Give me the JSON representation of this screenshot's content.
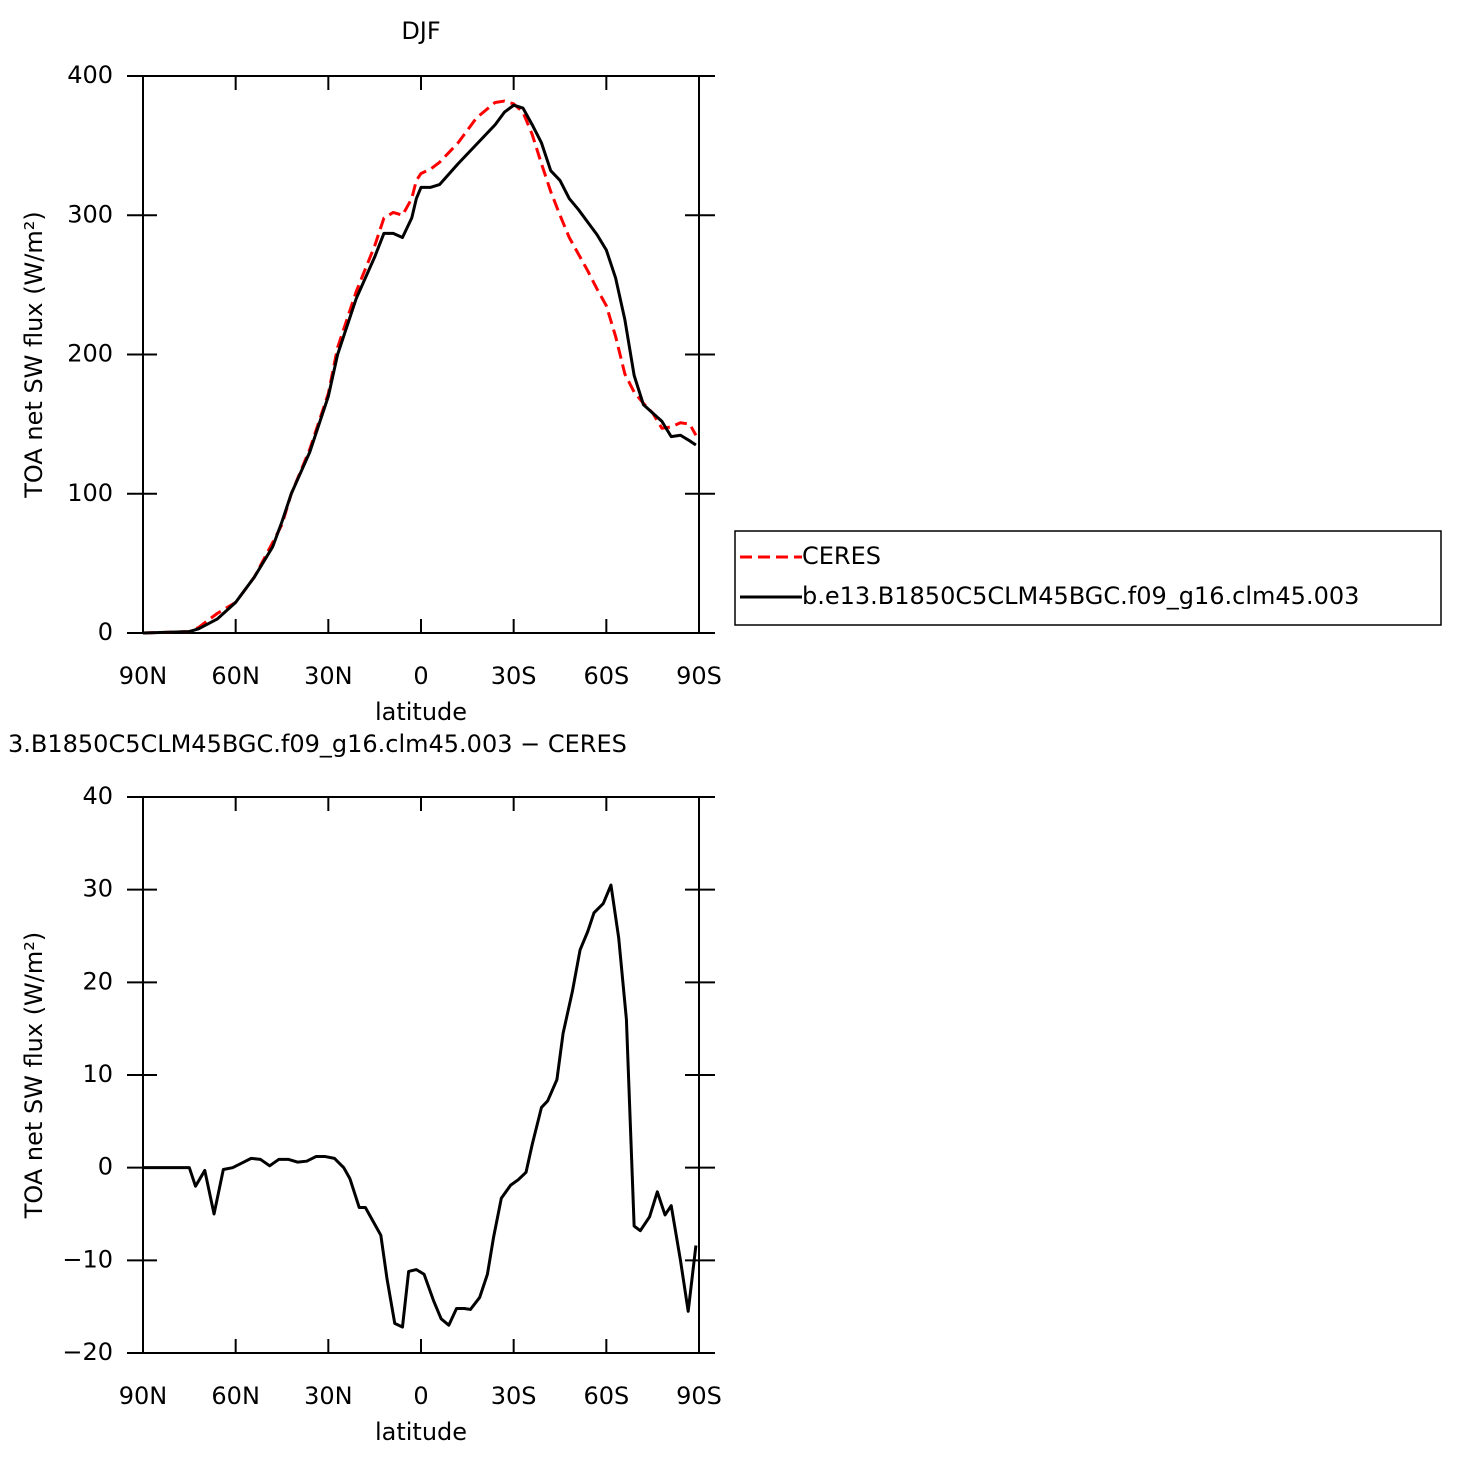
{
  "chart_data": [
    {
      "type": "line",
      "title": "DJF",
      "x_label": "latitude",
      "y_label": "TOA net SW flux (W/m²)",
      "xlim": [
        90,
        -90
      ],
      "xticks": [
        {
          "value": 90,
          "label": "90N"
        },
        {
          "value": 60,
          "label": "60N"
        },
        {
          "value": 30,
          "label": "30N"
        },
        0,
        {
          "value": -30,
          "label": "30S"
        },
        {
          "value": -60,
          "label": "60S"
        },
        {
          "value": -90,
          "label": "90S"
        }
      ],
      "ylim": [
        0,
        400
      ],
      "yticks": [
        0,
        100,
        200,
        300,
        400
      ],
      "legend": "right",
      "x": [
        90,
        75,
        72,
        66,
        60,
        54,
        48,
        45,
        42,
        36,
        30,
        27,
        21,
        15,
        12,
        9,
        6,
        3,
        1.5,
        0,
        -3,
        -6,
        -12,
        -18,
        -24,
        -27,
        -30,
        -33,
        -36,
        -39,
        -42,
        -45,
        -48,
        -51,
        -54,
        -57,
        -60,
        -63,
        -66,
        -69,
        -72,
        -75,
        -78,
        -81,
        -84,
        -87,
        -89
      ],
      "series": [
        {
          "name": "CERES",
          "color": "#ff0000",
          "style": "dashed",
          "values": [
            0,
            1,
            4,
            14,
            22,
            40,
            65,
            78,
            100,
            132,
            172,
            205,
            245,
            278,
            298,
            302,
            300,
            312,
            325,
            330,
            333,
            338,
            352,
            370,
            381,
            382,
            380,
            374,
            358,
            337,
            317,
            300,
            284,
            272,
            260,
            247,
            235,
            213,
            186,
            173,
            165,
            158,
            147,
            148,
            151,
            150,
            142
          ]
        },
        {
          "name": "b.e13.B1850C5CLM45BGC.f09_g16.clm45.003",
          "color": "#000000",
          "style": "solid",
          "values": [
            0,
            1,
            3,
            10,
            22,
            40,
            62,
            80,
            100,
            130,
            170,
            200,
            240,
            270,
            287,
            287,
            284,
            298,
            312,
            320,
            320,
            322,
            337,
            351,
            365,
            374,
            379,
            377,
            365,
            352,
            332,
            325,
            312,
            304,
            295,
            286,
            275,
            255,
            225,
            185,
            164,
            158,
            152,
            141,
            142,
            138,
            135
          ]
        }
      ]
    },
    {
      "type": "line",
      "title": "3.B1850C5CLM45BGC.f09_g16.clm45.003 − CERES",
      "x_label": "latitude",
      "y_label": "TOA net SW flux (W/m²)",
      "xlim": [
        90,
        -90
      ],
      "xticks": [
        {
          "value": 90,
          "label": "90N"
        },
        {
          "value": 60,
          "label": "60N"
        },
        {
          "value": 30,
          "label": "30N"
        },
        0,
        {
          "value": -30,
          "label": "30S"
        },
        {
          "value": -60,
          "label": "60S"
        },
        {
          "value": -90,
          "label": "90S"
        }
      ],
      "ylim": [
        -20,
        40
      ],
      "yticks": [
        {
          "value": -20,
          "label": "−20"
        },
        {
          "value": -10,
          "label": "−10"
        },
        0,
        10,
        20,
        30,
        40
      ],
      "x": [
        90,
        75,
        73,
        70,
        67,
        64,
        61,
        58,
        55,
        52,
        49,
        46,
        43,
        40,
        37,
        34,
        31,
        28,
        25,
        23,
        20,
        18,
        16,
        13,
        11,
        8.5,
        6,
        4,
        1.5,
        -1,
        -4,
        -6.5,
        -9,
        -11.5,
        -14,
        -16,
        -19,
        -21.5,
        -23.5,
        -26,
        -29,
        -31.5,
        -34,
        -36,
        -39,
        -41,
        -44,
        -46,
        -49,
        -51.5,
        -54,
        -56,
        -59,
        -61.5,
        -64,
        -66.5,
        -69,
        -71,
        -74,
        -76.5,
        -79,
        -81,
        -84,
        -86.5,
        -89
      ],
      "series": [
        {
          "color": "#000000",
          "style": "solid",
          "values": [
            0,
            0,
            -2,
            -0.3,
            -5,
            -0.2,
            0,
            0.5,
            1,
            0.9,
            0.2,
            0.9,
            0.9,
            0.6,
            0.7,
            1.2,
            1.2,
            1,
            0,
            -1.2,
            -4.3,
            -4.3,
            -5.5,
            -7.3,
            -12,
            -16.8,
            -17.2,
            -11.2,
            -11,
            -11.5,
            -14.3,
            -16.3,
            -17,
            -15.2,
            -15.2,
            -15.3,
            -14,
            -11.5,
            -7.5,
            -3.3,
            -1.9,
            -1.3,
            -0.5,
            2.5,
            6.5,
            7.2,
            9.5,
            14.5,
            19,
            23.5,
            25.5,
            27.5,
            28.5,
            30.5,
            24.8,
            16,
            -6.3,
            -6.8,
            -5.3,
            -2.6,
            -5.1,
            -4.1,
            -10,
            -15.5,
            -8.4
          ]
        }
      ]
    }
  ]
}
